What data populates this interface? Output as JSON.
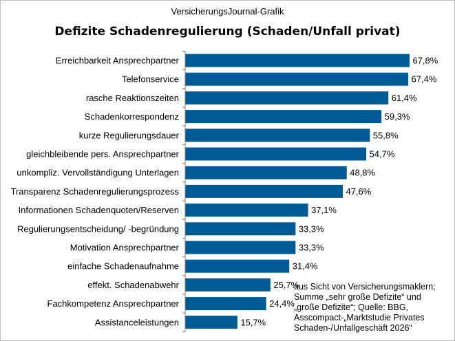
{
  "header": {
    "source": "VersicherungsJournal-Grafik"
  },
  "note": {
    "lines": [
      "aus Sicht von Versicherungsmaklern;",
      "Summe „sehr große Defizite“ und",
      "„große Defizite“; Quelle: BBG,",
      "Asscompact-„Marktstudie Privates",
      "Schaden-/Unfallgeschäft  2026“"
    ]
  },
  "chart_data": {
    "type": "bar",
    "orientation": "horizontal",
    "title": "Defizite Schadenregulierung (Schaden/Unfall privat)",
    "categories": [
      "Erreichbarkeit Ansprechpartner",
      "Telefonservice",
      "rasche Reaktionszeiten",
      "Schadenkorrespondenz",
      "kurze Regulierungsdauer",
      "gleichbleibende pers. Ansprechpartner",
      "unkompliz. Vervollständigung Unterlagen",
      "Transparenz Schadenregulierungsprozess",
      "Informationen Schadenquoten/Reserven",
      "Regulierungsentscheidung/ -begründung",
      "Motivation Ansprechpartner",
      "einfache Schadenaufnahme",
      "effekt. Schadenabwehr",
      "Fachkompetenz Ansprechpartner",
      "Assistanceleistungen"
    ],
    "values": [
      67.8,
      67.4,
      61.4,
      59.3,
      55.8,
      54.7,
      48.8,
      47.6,
      37.1,
      33.3,
      33.3,
      31.4,
      25.7,
      24.4,
      15.7
    ],
    "data_labels": [
      "67,8%",
      "67,4%",
      "61,4%",
      "59,3%",
      "55,8%",
      "54,7%",
      "48,8%",
      "47,6%",
      "37,1%",
      "33,3%",
      "33,3%",
      "31,4%",
      "25,7%",
      "24,4%",
      "15,7%"
    ],
    "xlim": [
      0,
      100
    ],
    "grid": false,
    "legend": "none",
    "bar_color": "#005a96"
  }
}
